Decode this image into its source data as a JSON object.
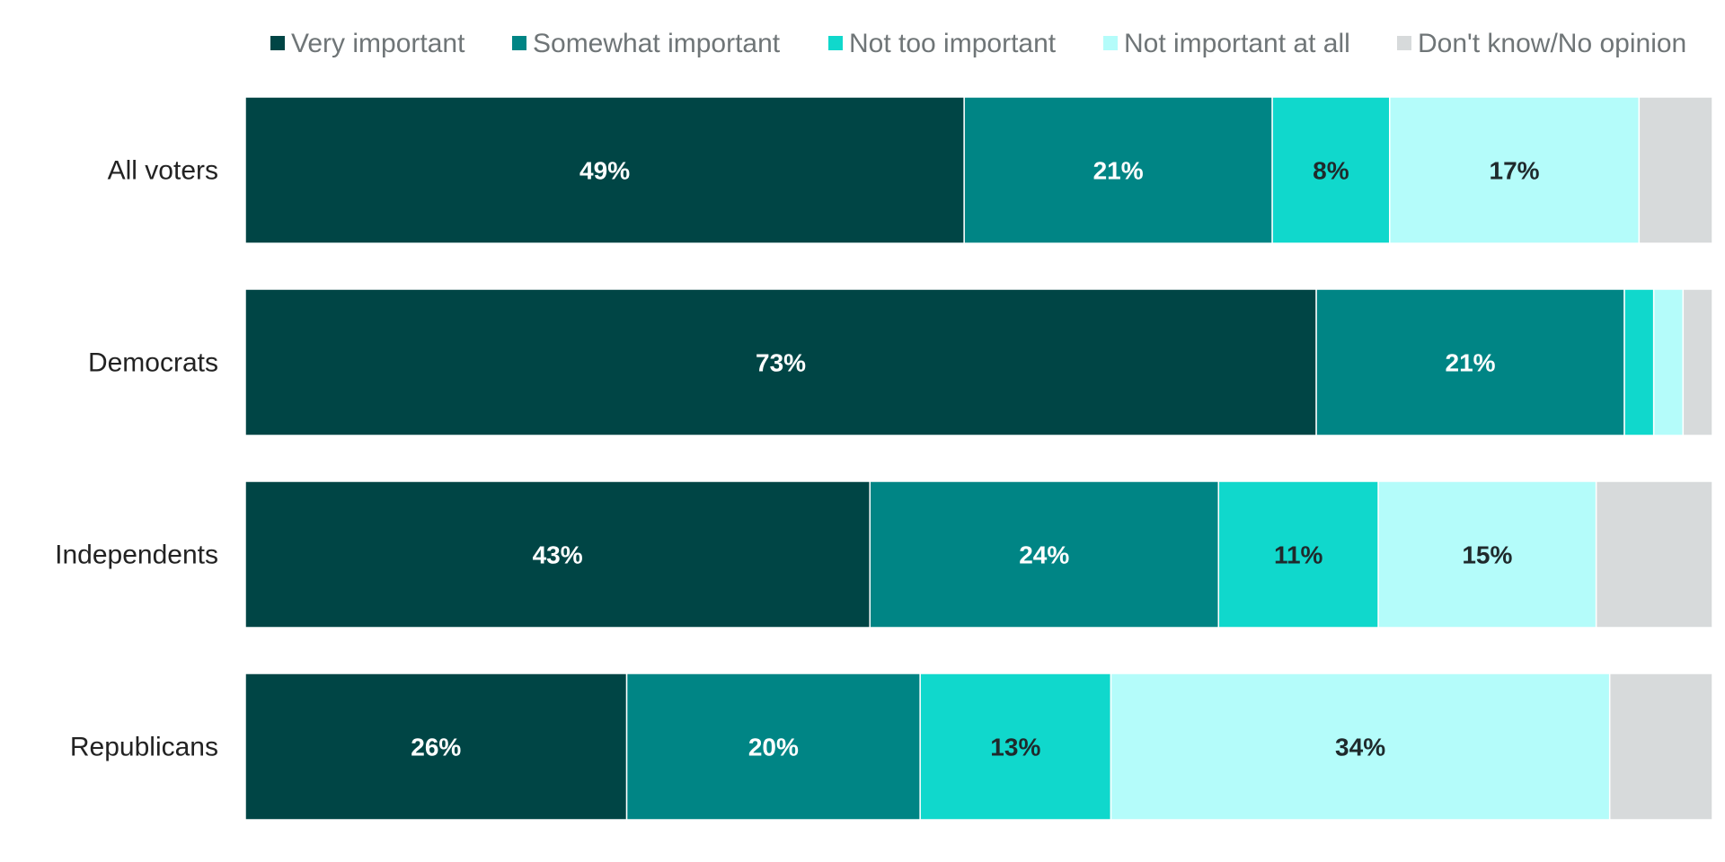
{
  "chart_data": {
    "type": "bar",
    "orientation": "horizontal",
    "stacked": true,
    "normalized": true,
    "legend_position": "top",
    "grid": false,
    "title": "",
    "xlabel": "",
    "ylabel": "",
    "categories": [
      "All voters",
      "Democrats",
      "Independents",
      "Republicans"
    ],
    "series": [
      {
        "name": "Very important",
        "color": "#004545",
        "values": [
          49,
          73,
          43,
          26
        ],
        "labels": [
          "49%",
          "73%",
          "43%",
          "26%"
        ]
      },
      {
        "name": "Somewhat important",
        "color": "#008585",
        "values": [
          21,
          21,
          24,
          20
        ],
        "labels": [
          "21%",
          "21%",
          "24%",
          "20%"
        ]
      },
      {
        "name": "Not too important",
        "color": "#10d8cc",
        "values": [
          8,
          2,
          11,
          13
        ],
        "labels": [
          "8%",
          "",
          "11%",
          "13%"
        ]
      },
      {
        "name": "Not important at all",
        "color": "#b4fcfa",
        "values": [
          17,
          2,
          15,
          34
        ],
        "labels": [
          "17%",
          "",
          "15%",
          "34%"
        ]
      },
      {
        "name": "Don't know/No opinion",
        "color": "#d7dadb",
        "values": [
          5,
          2,
          8,
          7
        ],
        "labels": [
          "",
          "",
          "",
          ""
        ]
      }
    ]
  }
}
